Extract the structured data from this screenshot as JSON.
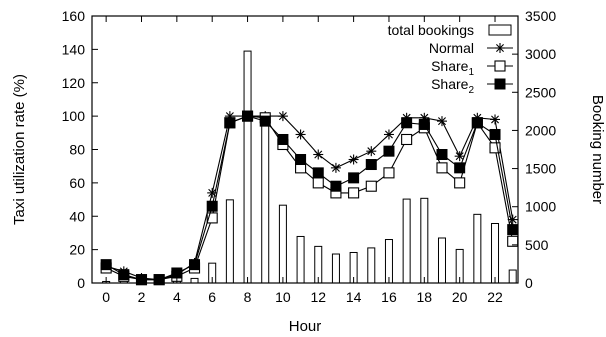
{
  "chart_data": {
    "type": "bar+line",
    "xlabel": "Hour",
    "ylabel_left": "Taxi utilization rate (%)",
    "ylabel_right": "Booking number",
    "x": [
      0,
      1,
      2,
      3,
      4,
      5,
      6,
      7,
      8,
      9,
      10,
      11,
      12,
      13,
      14,
      15,
      16,
      17,
      18,
      19,
      20,
      21,
      22,
      23
    ],
    "x_ticks": [
      0,
      2,
      4,
      6,
      8,
      10,
      12,
      14,
      16,
      18,
      20,
      22
    ],
    "x_tick_labels": [
      "0",
      "2",
      "4",
      "6",
      "8",
      "10",
      "12",
      "14",
      "16",
      "18",
      "20",
      "22"
    ],
    "ylim_left": [
      0,
      160
    ],
    "y_ticks_left": [
      0,
      20,
      40,
      60,
      80,
      100,
      120,
      140,
      160
    ],
    "y_tick_labels_left": [
      "0",
      "20",
      "40",
      "60",
      "80",
      "100",
      "120",
      "140",
      "160"
    ],
    "ylim_right": [
      0,
      3500
    ],
    "y_ticks_right": [
      0,
      500,
      1000,
      1500,
      2000,
      2500,
      3000,
      3500
    ],
    "y_tick_labels_right": [
      "0",
      "500",
      "1000",
      "1500",
      "2000",
      "2500",
      "3000",
      "3500"
    ],
    "legend_position": "top",
    "bars": {
      "name": "total bookings",
      "axis": "right",
      "values": [
        20,
        80,
        35,
        15,
        55,
        60,
        260,
        1090,
        3040,
        2180,
        1020,
        610,
        480,
        380,
        400,
        460,
        570,
        1100,
        1110,
        590,
        440,
        900,
        780,
        170
      ]
    },
    "series": [
      {
        "name": "Normal",
        "sub": "",
        "marker": "asterisk",
        "axis": "left",
        "values": [
          10,
          7,
          3,
          2,
          5,
          12,
          54,
          100,
          100,
          100,
          100,
          89,
          77,
          69,
          74,
          79,
          89,
          99,
          99,
          97,
          76,
          99,
          98,
          38
        ]
      },
      {
        "name": "Share",
        "sub": "1",
        "marker": "open-square",
        "axis": "left",
        "values": [
          9,
          4,
          2,
          2,
          4,
          9,
          39,
          96,
          100,
          99,
          83,
          69,
          60,
          54,
          54,
          58,
          66,
          86,
          93,
          69,
          60,
          96,
          81,
          25
        ]
      },
      {
        "name": "Share",
        "sub": "2",
        "marker": "filled-square",
        "axis": "left",
        "values": [
          11,
          5,
          2,
          2,
          6,
          11,
          46,
          96,
          100,
          97,
          86,
          74,
          66,
          58,
          63,
          71,
          79,
          96,
          95,
          77,
          69,
          96,
          89,
          32
        ]
      }
    ]
  }
}
